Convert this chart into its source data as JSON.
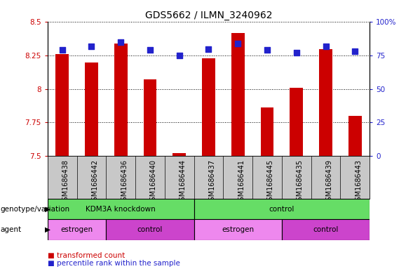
{
  "title": "GDS5662 / ILMN_3240962",
  "samples": [
    "GSM1686438",
    "GSM1686442",
    "GSM1686436",
    "GSM1686440",
    "GSM1686444",
    "GSM1686437",
    "GSM1686441",
    "GSM1686445",
    "GSM1686435",
    "GSM1686439",
    "GSM1686443"
  ],
  "red_values": [
    8.26,
    8.2,
    8.34,
    8.07,
    7.52,
    8.23,
    8.42,
    7.86,
    8.01,
    8.3,
    7.8
  ],
  "blue_values": [
    79,
    82,
    85,
    79,
    75,
    80,
    84,
    79,
    77,
    82,
    78
  ],
  "ylim_left": [
    7.5,
    8.5
  ],
  "ylim_right": [
    0,
    100
  ],
  "yticks_left": [
    7.5,
    7.75,
    8.0,
    8.25,
    8.5
  ],
  "yticks_right": [
    0,
    25,
    50,
    75,
    100
  ],
  "ytick_labels_left": [
    "7.5",
    "7.75",
    "8",
    "8.25",
    "8.5"
  ],
  "ytick_labels_right": [
    "0",
    "25",
    "50",
    "75",
    "100%"
  ],
  "red_color": "#cc0000",
  "blue_color": "#2222cc",
  "bar_width": 0.45,
  "dot_size": 28,
  "background_plot": "#ffffff",
  "background_sample_labels": "#c8c8c8",
  "green_color": "#66dd66",
  "estrogen_color": "#ee88ee",
  "control_agent_color": "#cc44cc",
  "title_fontsize": 10,
  "tick_fontsize": 7.5,
  "label_fontsize": 7.5,
  "annot_fontsize": 7.5
}
